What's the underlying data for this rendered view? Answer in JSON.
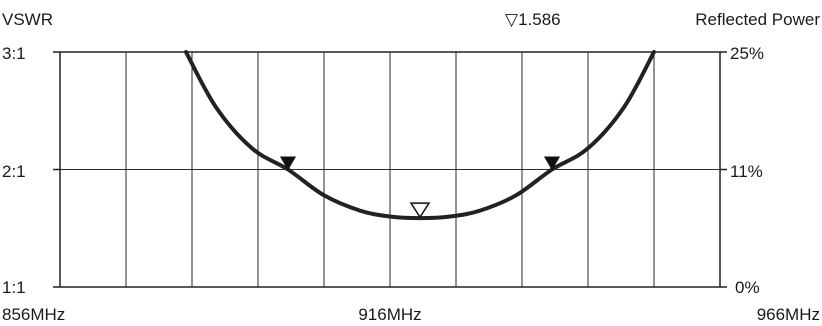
{
  "chart_data": {
    "type": "line",
    "left_axis_title": "VSWR",
    "right_axis_title": "Reflected Power",
    "marker_label": "▽1.586",
    "x_tick_labels": [
      "856MHz",
      "916MHz",
      "966MHz"
    ],
    "left_tick_labels": [
      "3:1",
      "2:1",
      "1:1"
    ],
    "right_tick_labels": [
      "25%",
      "11%",
      "0%"
    ],
    "x_range_mhz": [
      856,
      966
    ],
    "y_range_vswr": [
      1,
      3
    ],
    "grid": true,
    "grid_divisions": {
      "x": 10,
      "y": 2
    },
    "series": [
      {
        "x": [
          877,
          882,
          888,
          894,
          900,
          906,
          911,
          916,
          921,
          926,
          932,
          938,
          944,
          950,
          955
        ],
        "y": [
          3.0,
          2.53,
          2.18,
          2.0,
          1.78,
          1.65,
          1.6,
          1.586,
          1.6,
          1.65,
          1.78,
          2.0,
          2.18,
          2.53,
          3.0
        ],
        "color": "#222222"
      }
    ],
    "markers": [
      {
        "x": 894,
        "y": 2.0,
        "style": "filled-down-triangle"
      },
      {
        "x": 938,
        "y": 2.0,
        "style": "filled-down-triangle"
      },
      {
        "x": 916,
        "y": 1.586,
        "style": "open-down-triangle"
      }
    ]
  }
}
